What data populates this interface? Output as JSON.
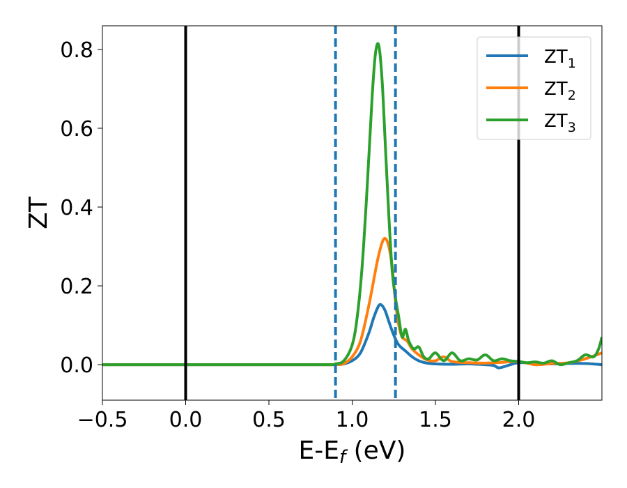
{
  "chart_data": {
    "type": "line",
    "xlabel": "E-E",
    "xlabel_sub": "f",
    "xlabel_unit": " (eV)",
    "ylabel": "ZT",
    "xlim": [
      -0.5,
      2.5
    ],
    "ylim": [
      -0.09,
      0.86
    ],
    "xticks": [
      -0.5,
      0.0,
      0.5,
      1.0,
      1.5,
      2.0
    ],
    "xtick_labels": [
      "−0.5",
      "0.0",
      "0.5",
      "1.0",
      "1.5",
      "2.0"
    ],
    "yticks": [
      0.0,
      0.2,
      0.4,
      0.6,
      0.8
    ],
    "ytick_labels": [
      "0.0",
      "0.2",
      "0.4",
      "0.6",
      "0.8"
    ],
    "grid": false,
    "legend_position": "top-right",
    "vlines_solid": [
      0.0,
      2.0
    ],
    "vlines_dashed": [
      0.9,
      1.26
    ],
    "series": [
      {
        "name": "ZT",
        "name_sub": "1",
        "color": "#1f77b4",
        "x": [
          -0.5,
          0.0,
          0.5,
          0.85,
          0.9,
          0.95,
          1.0,
          1.05,
          1.1,
          1.13,
          1.16,
          1.18,
          1.2,
          1.22,
          1.25,
          1.28,
          1.32,
          1.36,
          1.4,
          1.45,
          1.5,
          1.6,
          1.7,
          1.8,
          1.85,
          1.88,
          1.92,
          2.0,
          2.1,
          2.2,
          2.3,
          2.4,
          2.5
        ],
        "y": [
          0.0,
          0.0,
          0.0,
          0.0,
          0.0,
          0.002,
          0.01,
          0.03,
          0.08,
          0.12,
          0.15,
          0.15,
          0.135,
          0.11,
          0.075,
          0.05,
          0.035,
          0.02,
          0.01,
          0.004,
          0.002,
          0.001,
          0.002,
          0.0,
          -0.002,
          -0.008,
          -0.004,
          0.005,
          0.003,
          0.002,
          0.003,
          0.003,
          0.0
        ]
      },
      {
        "name": "ZT",
        "name_sub": "2",
        "color": "#ff7f0e",
        "x": [
          -0.5,
          0.0,
          0.5,
          0.85,
          0.9,
          0.95,
          1.0,
          1.05,
          1.1,
          1.15,
          1.18,
          1.2,
          1.22,
          1.24,
          1.26,
          1.28,
          1.3,
          1.33,
          1.36,
          1.4,
          1.45,
          1.5,
          1.55,
          1.6,
          1.7,
          1.8,
          1.9,
          2.0,
          2.1,
          2.2,
          2.3,
          2.4,
          2.5
        ],
        "y": [
          0.0,
          0.0,
          0.0,
          0.0,
          0.0,
          0.003,
          0.02,
          0.06,
          0.15,
          0.26,
          0.31,
          0.32,
          0.3,
          0.25,
          0.16,
          0.1,
          0.07,
          0.06,
          0.04,
          0.025,
          0.012,
          0.01,
          0.02,
          0.008,
          0.005,
          0.004,
          0.006,
          0.008,
          0.0,
          0.003,
          0.005,
          0.015,
          0.03
        ]
      },
      {
        "name": "ZT",
        "name_sub": "3",
        "color": "#2ca02c",
        "x": [
          -0.5,
          0.0,
          0.5,
          0.85,
          0.9,
          0.95,
          1.0,
          1.03,
          1.06,
          1.09,
          1.12,
          1.14,
          1.16,
          1.18,
          1.2,
          1.22,
          1.24,
          1.26,
          1.28,
          1.3,
          1.32,
          1.34,
          1.37,
          1.4,
          1.43,
          1.46,
          1.5,
          1.55,
          1.6,
          1.65,
          1.7,
          1.75,
          1.8,
          1.85,
          1.9,
          1.95,
          2.0,
          2.05,
          2.1,
          2.15,
          2.2,
          2.25,
          2.3,
          2.35,
          2.4,
          2.45,
          2.48,
          2.5
        ],
        "y": [
          0.0,
          0.0,
          0.0,
          0.0,
          0.002,
          0.01,
          0.05,
          0.12,
          0.25,
          0.45,
          0.68,
          0.79,
          0.81,
          0.72,
          0.55,
          0.38,
          0.24,
          0.17,
          0.12,
          0.07,
          0.09,
          0.06,
          0.04,
          0.045,
          0.02,
          0.015,
          0.03,
          0.01,
          0.03,
          0.01,
          0.015,
          0.012,
          0.025,
          0.01,
          0.015,
          0.01,
          0.008,
          0.005,
          0.007,
          0.004,
          0.01,
          0.0,
          0.005,
          0.01,
          0.025,
          0.02,
          0.04,
          0.07
        ]
      }
    ]
  }
}
